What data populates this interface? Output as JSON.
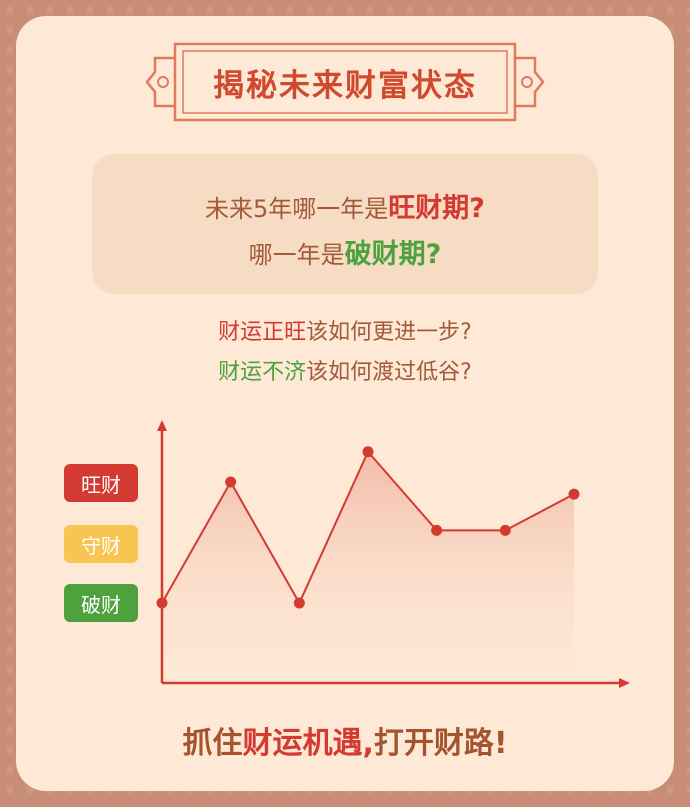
{
  "title": "揭秘未来财富状态",
  "question": {
    "line1_prefix": "未来5年哪一年是",
    "line1_highlight": "旺财期?",
    "line2_prefix": "哪一年是",
    "line2_highlight": "破财期?"
  },
  "subtitle": {
    "line1_highlight": "财运正旺",
    "line1_rest": "该如何更进一步?",
    "line2_highlight": "财运不济",
    "line2_rest": "该如何渡过低谷?"
  },
  "legend": {
    "wang": "旺财",
    "shou": "守财",
    "po": "破财"
  },
  "chart_data": {
    "type": "line",
    "levels": [
      "破财",
      "守财",
      "旺财"
    ],
    "values": [
      0,
      2,
      0,
      2.5,
      1.2,
      1.2,
      1.8
    ],
    "colors": {
      "line": "#d33a31",
      "point": "#d33a31",
      "axis": "#d33a31",
      "area_top": "#f2b8a8"
    }
  },
  "footer": {
    "prefix": "抓住",
    "highlight": "财运机遇,",
    "rest": "打开财路!"
  },
  "colors": {
    "accent": "#d33a31",
    "green": "#4da23d",
    "yellow": "#f8c553",
    "text_brown": "#a25a3a",
    "card_bg": "#fde9d5"
  }
}
